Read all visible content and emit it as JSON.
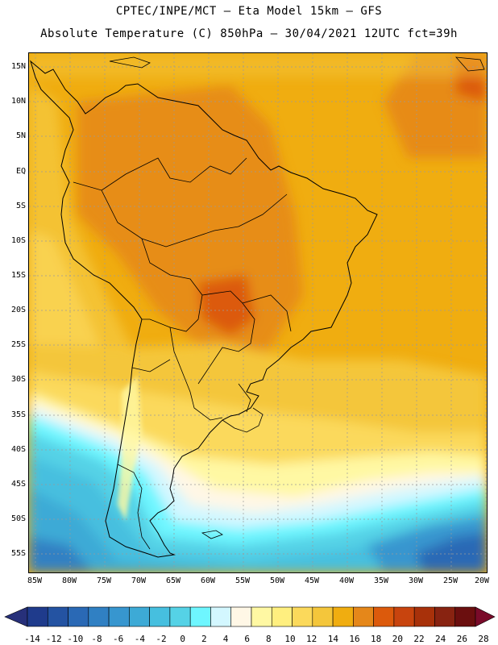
{
  "header": {
    "line1": "CPTEC/INPE/MCT –  Eta Model 15km – GFS",
    "line2": "Absolute Temperature (C) 850hPa – 30/04/2021 12UTC fct=39h"
  },
  "map": {
    "lat_labels": [
      "15N",
      "10N",
      "5N",
      "EQ",
      "5S",
      "10S",
      "15S",
      "20S",
      "25S",
      "30S",
      "35S",
      "40S",
      "45S",
      "50S",
      "55S"
    ],
    "lon_labels": [
      "85W",
      "80W",
      "75W",
      "70W",
      "65W",
      "60W",
      "55W",
      "50W",
      "45W",
      "40W",
      "35W",
      "30W",
      "25W",
      "20W"
    ],
    "grid": "dashed",
    "continent": "South America"
  },
  "colorbar": {
    "ticks": [
      "-14",
      "-12",
      "-10",
      "-8",
      "-6",
      "-4",
      "-2",
      "0",
      "2",
      "4",
      "6",
      "8",
      "10",
      "12",
      "14",
      "16",
      "18",
      "20",
      "22",
      "24",
      "26",
      "28"
    ],
    "colors": [
      "#1f3b8c",
      "#2453a2",
      "#2a69b5",
      "#3080c3",
      "#3796cf",
      "#3daad6",
      "#46bfdf",
      "#55d2e6",
      "#6ef6ff",
      "#d3f7ff",
      "#fff7e6",
      "#fff8a3",
      "#ffef7f",
      "#fbd95b",
      "#f4c63b",
      "#f0ad10",
      "#e5871a",
      "#dc5a0c",
      "#c8440e",
      "#a8310a",
      "#882311",
      "#6b0f0f"
    ],
    "under_color": "#27307a",
    "over_color": "#7a0b2a"
  }
}
